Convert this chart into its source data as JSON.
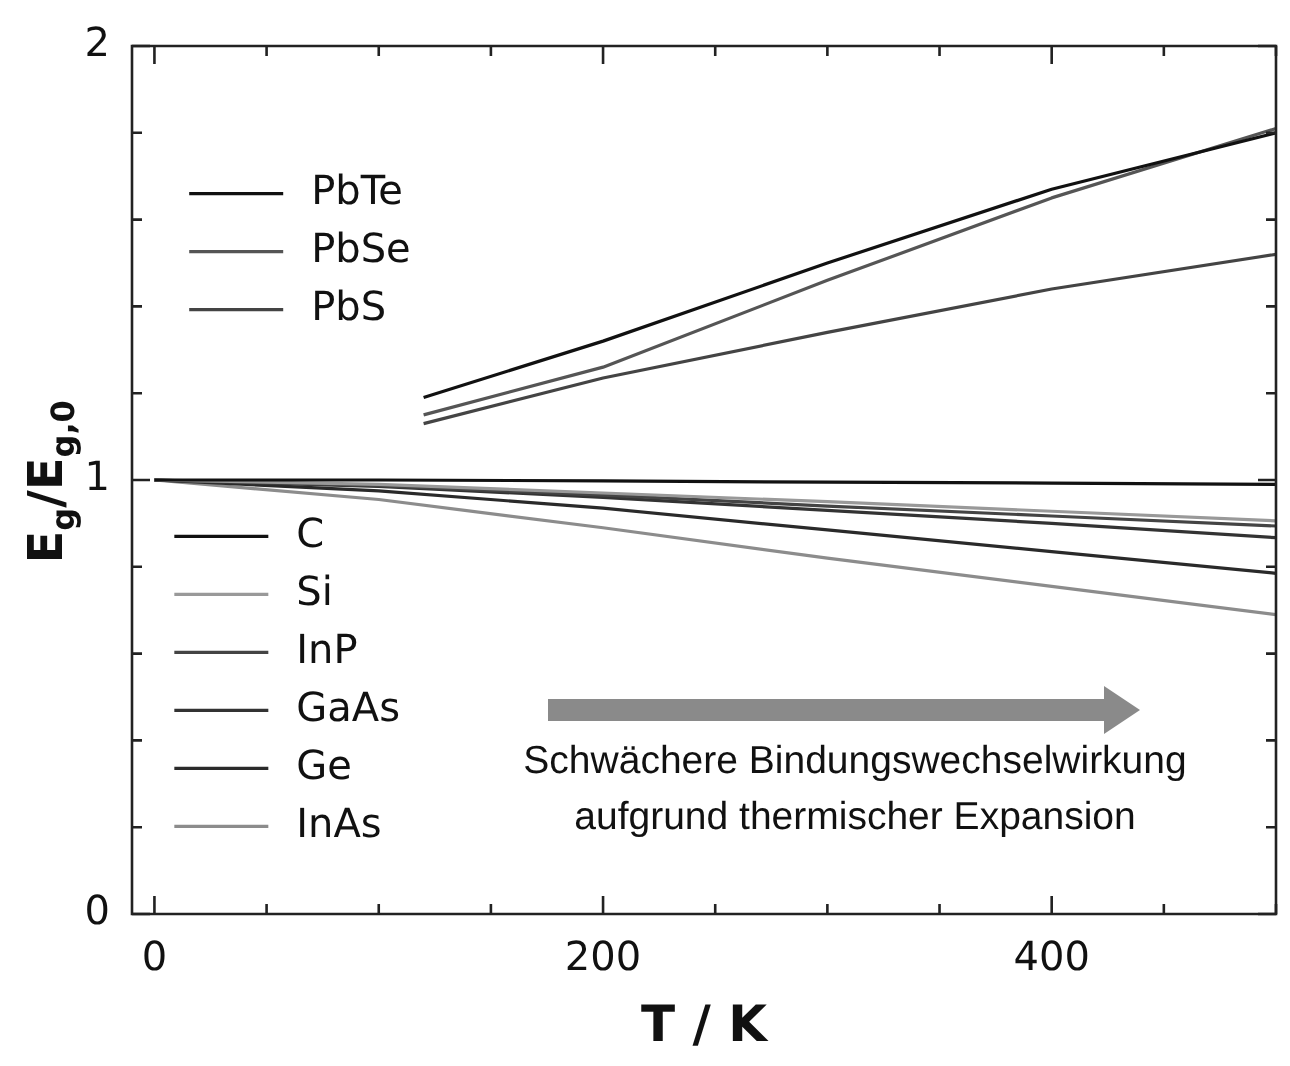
{
  "chart_data": {
    "type": "line",
    "xlabel": "T / K",
    "ylabel": "E$_{g}$/E$_{g,0}$",
    "x": [
      0,
      100,
      200,
      300,
      400,
      500
    ],
    "xlim": [
      -10,
      500
    ],
    "xticks": [
      0,
      {
        "value": 50,
        "label": null
      },
      {
        "value": 100,
        "label": null
      },
      {
        "value": 150,
        "label": null
      },
      200,
      {
        "value": 250,
        "label": null
      },
      {
        "value": 300,
        "label": null
      },
      {
        "value": 350,
        "label": null
      },
      400,
      {
        "value": 450,
        "label": null
      },
      {
        "value": 500,
        "label": null
      }
    ],
    "ylim": [
      0,
      2
    ],
    "yticks": [
      0,
      {
        "value": 0.2,
        "label": null
      },
      {
        "value": 0.4,
        "label": null
      },
      {
        "value": 0.6,
        "label": null
      },
      {
        "value": 0.8,
        "label": null
      },
      1,
      {
        "value": 1.2,
        "label": null
      },
      {
        "value": 1.4,
        "label": null
      },
      {
        "value": 1.6,
        "label": null
      },
      {
        "value": 1.8,
        "label": null
      },
      2
    ],
    "grid": false,
    "legend": "left",
    "marker": "none",
    "line_style": "solid",
    "series": [
      {
        "name": "PbTe",
        "color": "#111111",
        "x": [
          120,
          200,
          300,
          400,
          500
        ],
        "values": [
          1.19,
          1.32,
          1.5,
          1.67,
          1.8
        ]
      },
      {
        "name": "PbSe",
        "color": "#555555",
        "x": [
          120,
          200,
          300,
          400,
          500
        ],
        "values": [
          1.15,
          1.26,
          1.46,
          1.65,
          1.81
        ]
      },
      {
        "name": "PbS",
        "color": "#444444",
        "x": [
          120,
          200,
          300,
          400,
          500
        ],
        "values": [
          1.13,
          1.235,
          1.34,
          1.44,
          1.52
        ]
      },
      {
        "name": "C",
        "color": "#111111",
        "values": [
          1,
          1,
          0.998,
          0.995,
          0.993,
          0.99
        ]
      },
      {
        "name": "Si",
        "color": "#999999",
        "values": [
          1,
          0.99,
          0.97,
          0.95,
          0.928,
          0.906
        ]
      },
      {
        "name": "InP",
        "color": "#444444",
        "values": [
          1,
          0.987,
          0.965,
          0.94,
          0.917,
          0.894
        ]
      },
      {
        "name": "GaAs",
        "color": "#333333",
        "values": [
          1,
          0.985,
          0.96,
          0.93,
          0.9,
          0.867
        ]
      },
      {
        "name": "Ge",
        "color": "#2a2a2a",
        "values": [
          1,
          0.975,
          0.935,
          0.885,
          0.835,
          0.785
        ]
      },
      {
        "name": "InAs",
        "color": "#8c8c8c",
        "values": [
          1,
          0.955,
          0.89,
          0.82,
          0.755,
          0.69
        ]
      }
    ],
    "annotations": [
      "Schwächere Bindungswechselwirkung\naufgrund thermischer Expansion"
    ]
  }
}
